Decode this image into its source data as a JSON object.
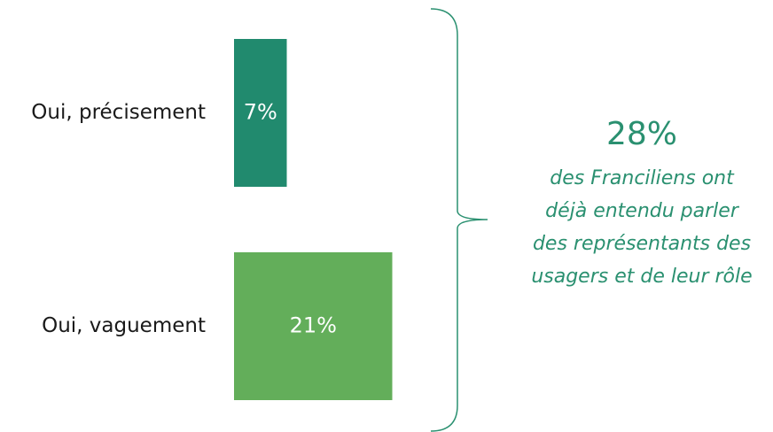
{
  "chart_data": {
    "type": "hbar",
    "categories": [
      "Oui, précisement",
      "Oui, vaguement"
    ],
    "values": [
      7,
      21
    ],
    "value_labels": [
      "7%",
      "21%"
    ],
    "colors": [
      "#218a6e",
      "#63ae5a"
    ],
    "annotation": {
      "value": "28%",
      "lines": [
        "des Franciliens ont",
        "déjà entendu parler",
        "des représentants des",
        "usagers et de leur rôle"
      ]
    }
  }
}
